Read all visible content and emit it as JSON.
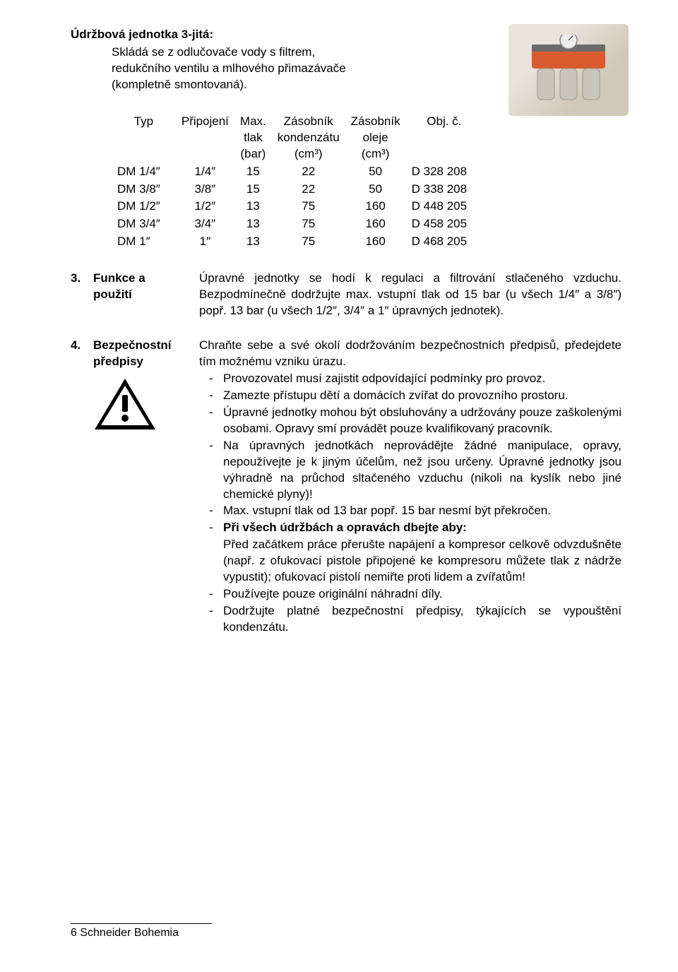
{
  "heading": {
    "title": "Údržbová jednotka 3-jitá:",
    "desc_line1": "Skládá se z odlučovače vody s filtrem,",
    "desc_line2": "redukčního ventilu a mlhového přimazávače",
    "desc_line3": "(kompletně smontovaná)."
  },
  "product_image": {
    "alt": "maintenance-unit-photo",
    "body_color": "#d85a2e",
    "gauge_color": "#ececec",
    "bowl_color": "#c9c5bb"
  },
  "table": {
    "headers": {
      "typ": "Typ",
      "pripojeni": "Připojení",
      "max_l1": "Max.",
      "max_l2": "tlak",
      "max_l3": "(bar)",
      "kond_l1": "Zásobník",
      "kond_l2": "kondenzátu",
      "kond_l3": "(cm³)",
      "olej_l1": "Zásobník",
      "olej_l2": "oleje",
      "olej_l3": "(cm³)",
      "obj": "Obj. č."
    },
    "rows": [
      {
        "typ": "DM 1/4″",
        "prip": "1/4″",
        "tlak": "15",
        "kond": "22",
        "olej": "50",
        "obj": "D 328 208"
      },
      {
        "typ": "DM 3/8″",
        "prip": "3/8″",
        "tlak": "15",
        "kond": "22",
        "olej": "50",
        "obj": "D 338 208"
      },
      {
        "typ": "DM 1/2″",
        "prip": "1/2″",
        "tlak": "13",
        "kond": "75",
        "olej": "160",
        "obj": "D 448 205"
      },
      {
        "typ": "DM 3/4″",
        "prip": "3/4″",
        "tlak": "13",
        "kond": "75",
        "olej": "160",
        "obj": "D 458 205"
      },
      {
        "typ": "DM 1″",
        "prip": "1″",
        "tlak": "13",
        "kond": "75",
        "olej": "160",
        "obj": "D 468 205"
      }
    ]
  },
  "section3": {
    "num": "3.",
    "head_l1": "Funkce a",
    "head_l2": "použití",
    "body": "Úpravné jednotky se hodí k regulaci a filtrování stlačeného vzduchu. Bezpodmínečně dodržujte max. vstupní tlak od 15 bar (u všech 1/4″ a 3/8″) popř. 13 bar (u všech 1/2″, 3/4″ a 1″ úpravných jednotek)."
  },
  "section4": {
    "num": "4.",
    "head_l1": "Bezpečnostní",
    "head_l2": "předpisy",
    "intro": "Chraňte sebe a své okolí dodržováním bezpečnostních předpisů, předejdete tím možnému vzniku úrazu.",
    "bullets": [
      {
        "t": "Provozovatel musí zajistit odpovídající podmínky pro provoz."
      },
      {
        "t": "Zamezte přístupu dětí a domácích zvířat do provozního prostoru."
      },
      {
        "t": "Úpravné jednotky mohou být obsluhovány a udržovány pouze zaškolenými  osobami. Opravy smí provádět pouze kvalifikovaný pracovník."
      },
      {
        "t": "Na úpravných jednotkách neprovádějte žádné manipulace, opravy, nepoužívejte je k jiným účelům, než jsou určeny. Úpravné jednotky jsou výhradně  na průchod sltačeného vzduchu (nikoli na kyslík nebo jiné chemické plyny)!"
      },
      {
        "t": "Max. vstupní tlak od 13 bar popř. 15 bar nesmí být překročen."
      }
    ],
    "bold_bullet_prefix": "Při všech údržbách a opravách dbejte aby:",
    "bold_bullet_body": "Před začátkem práce přerušte napájení a kompresor celkově odvzdušněte (např. z ofukovací pistole připojené ke kompresoru můžete tlak z nádrže vypustit); ofukovací pistolí nemiřte proti lidem a zvířatům!",
    "bullets2": [
      {
        "t": "Používejte pouze originální náhradní díly."
      },
      {
        "t": "Dodržujte platné bezpečnostní předpisy, týkajících se vypouštění kondenzátu."
      }
    ]
  },
  "footer": "6 Schneider Bohemia"
}
